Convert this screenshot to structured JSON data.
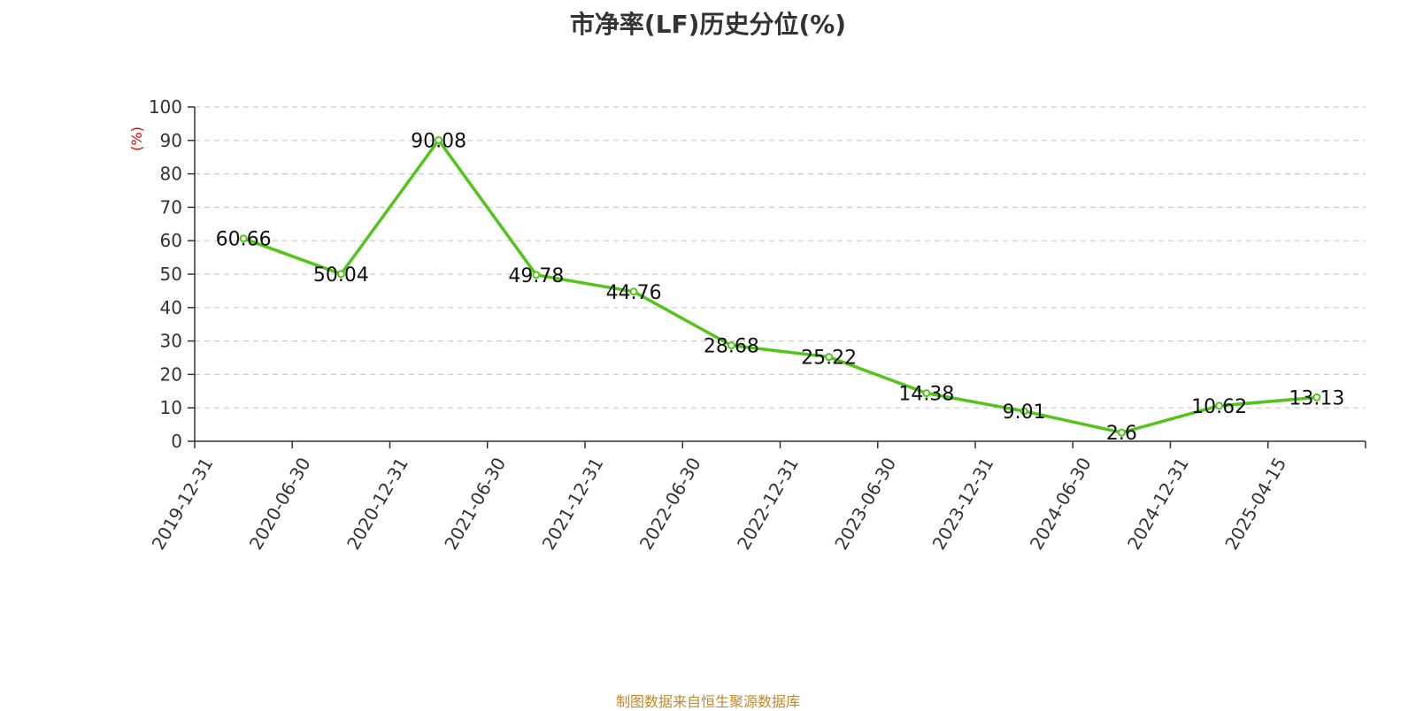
{
  "title": "市净率(LF)历史分位(%)",
  "source": "制图数据来自恒生聚源数据库",
  "chart_data": {
    "type": "line",
    "title": "市净率(LF)历史分位(%)",
    "ylabel": "(%)",
    "xlabel": "",
    "categories": [
      "2019-12-31",
      "2020-06-30",
      "2020-12-31",
      "2021-06-30",
      "2021-12-31",
      "2022-06-30",
      "2022-12-31",
      "2023-06-30",
      "2023-12-31",
      "2024-06-30",
      "2024-12-31",
      "2025-04-15"
    ],
    "values": [
      60.66,
      50.04,
      90.08,
      49.78,
      44.76,
      28.68,
      25.22,
      14.38,
      9.01,
      2.6,
      10.62,
      13.13
    ],
    "value_labels": [
      "60.66",
      "50.04",
      "90.08",
      "49.78",
      "44.76",
      "28.68",
      "25.22",
      "14.38",
      "9.01",
      "2.6",
      "10.62",
      "13.13"
    ],
    "ylim": [
      0,
      100
    ],
    "yticks": [
      "0",
      "10",
      "20",
      "30",
      "40",
      "50",
      "60",
      "70",
      "80",
      "90",
      "100"
    ],
    "grid": true,
    "colors": {
      "line": "#52c41a",
      "grid": "#cccccc",
      "axis": "#333333",
      "ylabel": "#e00000",
      "source": "#c08a2a"
    }
  }
}
